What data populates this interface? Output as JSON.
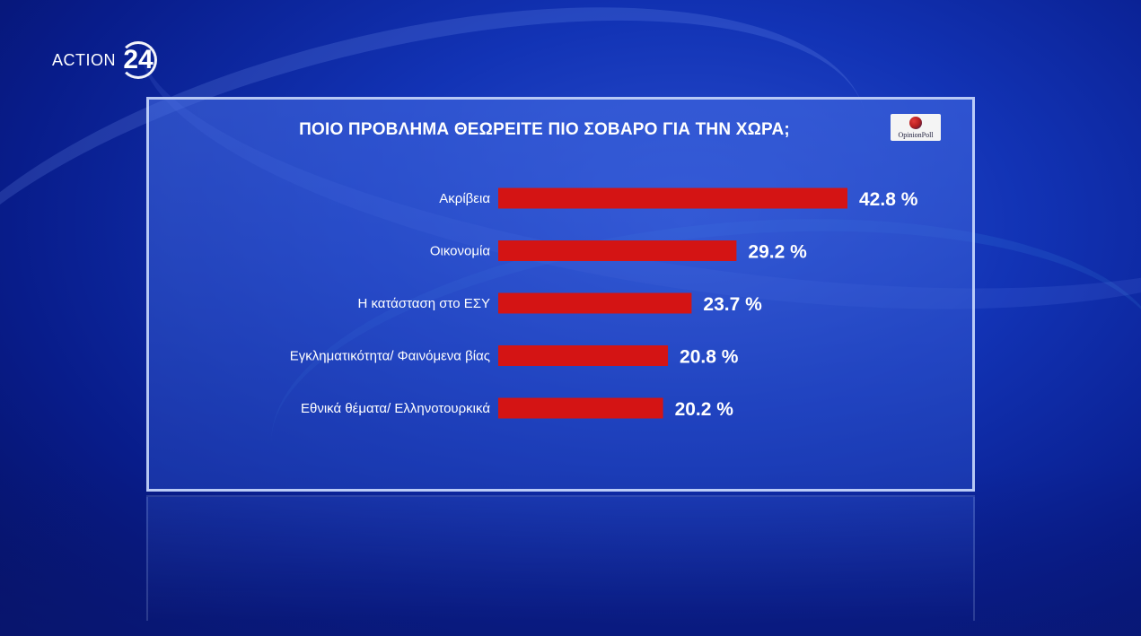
{
  "brand": {
    "name": "ACTION",
    "number": "24"
  },
  "source": {
    "name": "OpinionPoll"
  },
  "colors": {
    "bar": "#d41414",
    "background": "#1233b5",
    "text": "#ffffff"
  },
  "chart_data": {
    "type": "bar",
    "orientation": "horizontal",
    "title": "ΠΟΙΟ ΠΡΟΒΛΗΜΑ ΘΕΩΡΕΙΤΕ ΠΙΟ ΣΟΒΑΡΟ ΓΙΑ ΤΗΝ ΧΩΡΑ;",
    "categories": [
      "Ακρίβεια",
      "Οικονομία",
      "Η κατάσταση στο ΕΣΥ",
      "Εγκληματικότητα/ Φαινόμενα βίας",
      "Εθνικά θέματα/ Ελληνοτουρκικά"
    ],
    "values": [
      42.8,
      29.2,
      23.7,
      20.8,
      20.2
    ],
    "value_labels": [
      "42.8 %",
      "29.2 %",
      "23.7 %",
      "20.8 %",
      "20.2 %"
    ],
    "unit": "%",
    "xlim": [
      0,
      42.8
    ],
    "grid": false,
    "legend": "none"
  }
}
